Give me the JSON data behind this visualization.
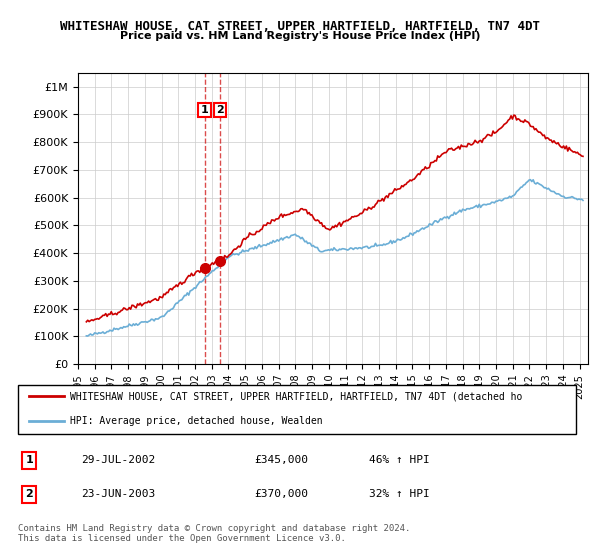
{
  "title": "WHITESHAW HOUSE, CAT STREET, UPPER HARTFIELD, HARTFIELD, TN7 4DT",
  "subtitle": "Price paid vs. HM Land Registry's House Price Index (HPI)",
  "ylabel_ticks": [
    "£0",
    "£100K",
    "£200K",
    "£300K",
    "£400K",
    "£500K",
    "£600K",
    "£700K",
    "£800K",
    "£900K",
    "£1M"
  ],
  "ytick_values": [
    0,
    100000,
    200000,
    300000,
    400000,
    500000,
    600000,
    700000,
    800000,
    900000,
    1000000
  ],
  "ylim": [
    0,
    1050000
  ],
  "xlim_start": 1995.5,
  "xlim_end": 2025.5,
  "sale1_date": 2002.57,
  "sale1_price": 345000,
  "sale2_date": 2003.47,
  "sale2_price": 370000,
  "hpi_color": "#6baed6",
  "price_color": "#cc0000",
  "dashed_color": "#cc0000",
  "legend_line1": "WHITESHAW HOUSE, CAT STREET, UPPER HARTFIELD, HARTFIELD, TN7 4DT (detached ho",
  "legend_line2": "HPI: Average price, detached house, Wealden",
  "table_row1": [
    "1",
    "29-JUL-2002",
    "£345,000",
    "46% ↑ HPI"
  ],
  "table_row2": [
    "2",
    "23-JUN-2003",
    "£370,000",
    "32% ↑ HPI"
  ],
  "footer": "Contains HM Land Registry data © Crown copyright and database right 2024.\nThis data is licensed under the Open Government Licence v3.0.",
  "xtick_years": [
    1995,
    1996,
    1997,
    1998,
    1999,
    2000,
    2001,
    2002,
    2003,
    2004,
    2005,
    2006,
    2007,
    2008,
    2009,
    2010,
    2011,
    2012,
    2013,
    2014,
    2015,
    2016,
    2017,
    2018,
    2019,
    2020,
    2021,
    2022,
    2023,
    2024,
    2025
  ]
}
